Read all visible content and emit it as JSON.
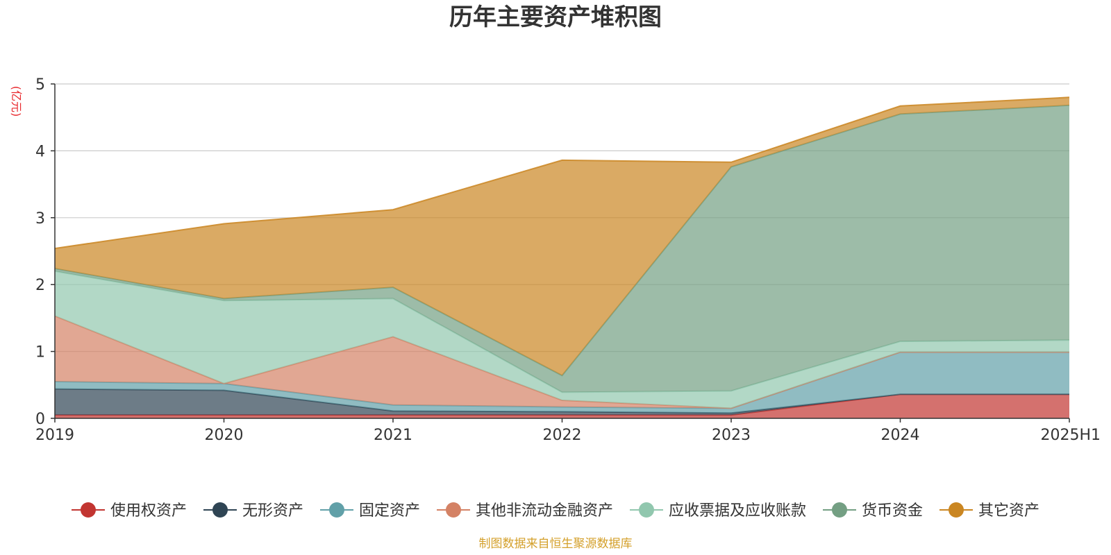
{
  "chart_data": {
    "type": "area",
    "stacked": true,
    "title": "历年主要资产堆积图",
    "unit_label": "(亿元)",
    "x": [
      "2019",
      "2020",
      "2021",
      "2022",
      "2023",
      "2024",
      "2025H1"
    ],
    "ylim": [
      0,
      5
    ],
    "yticks": [
      "0",
      "1",
      "2",
      "3",
      "4",
      "5"
    ],
    "grid": true,
    "legend_position": "bottom",
    "series": [
      {
        "name": "使用权资产",
        "color": "#c23531",
        "values": [
          0.05,
          0.05,
          0.05,
          0.05,
          0.05,
          0.36,
          0.36
        ]
      },
      {
        "name": "无形资产",
        "color": "#2f4554",
        "values": [
          0.39,
          0.37,
          0.06,
          0.05,
          0.03,
          0.0,
          0.0
        ]
      },
      {
        "name": "固定资产",
        "color": "#61a0a8",
        "values": [
          0.11,
          0.1,
          0.09,
          0.07,
          0.07,
          0.63,
          0.63
        ]
      },
      {
        "name": "其他非流动金融资产",
        "color": "#d48265",
        "values": [
          0.98,
          0.0,
          1.02,
          0.1,
          0.0,
          0.0,
          0.0
        ]
      },
      {
        "name": "应收票据及应收账款",
        "color": "#91c7ae",
        "values": [
          0.67,
          1.24,
          0.57,
          0.12,
          0.26,
          0.16,
          0.18
        ]
      },
      {
        "name": "货币资金",
        "color": "#749f83",
        "values": [
          0.04,
          0.03,
          0.17,
          0.25,
          3.35,
          3.4,
          3.51
        ]
      },
      {
        "name": "其它资产",
        "color": "#ca8622",
        "values": [
          0.3,
          1.12,
          1.16,
          3.22,
          0.07,
          0.12,
          0.12
        ]
      }
    ],
    "source": "制图数据来自恒生聚源数据库"
  }
}
